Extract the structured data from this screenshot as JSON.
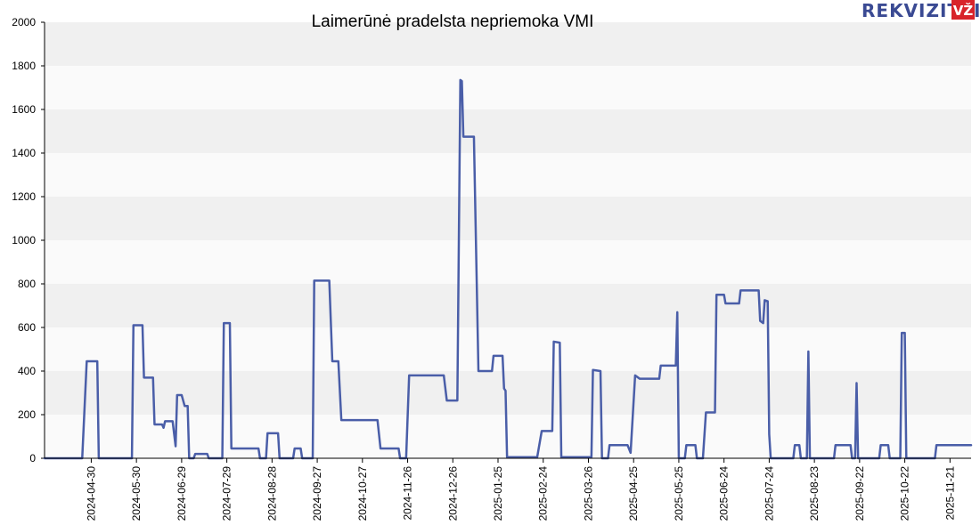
{
  "chart_data": {
    "type": "line",
    "title": "Laimerūnė pradelsta nepriemoka VMI",
    "xlabel": "",
    "ylabel": "",
    "ylim": [
      0,
      2000
    ],
    "y_ticks": [
      0,
      200,
      400,
      600,
      800,
      1000,
      1200,
      1400,
      1600,
      1800,
      2000
    ],
    "x_range": [
      "2024-03-30",
      "2025-12-05"
    ],
    "x_ticks": [
      "2024-04-30",
      "2024-05-30",
      "2024-06-29",
      "2024-07-29",
      "2024-08-28",
      "2024-09-27",
      "2024-10-27",
      "2024-11-26",
      "2024-12-26",
      "2025-01-25",
      "2025-02-24",
      "2025-03-26",
      "2025-04-25",
      "2025-05-25",
      "2025-06-24",
      "2025-07-24",
      "2025-08-23",
      "2025-09-22",
      "2025-10-22",
      "2025-11-21"
    ],
    "grid": "horizontal bands",
    "legend": "none",
    "line_color": "#4a5ea8",
    "series": [
      {
        "points": [
          [
            "2024-03-30",
            0
          ],
          [
            "2024-04-24",
            0
          ],
          [
            "2024-04-27",
            445
          ],
          [
            "2024-05-04",
            445
          ],
          [
            "2024-05-05",
            0
          ],
          [
            "2024-05-27",
            0
          ],
          [
            "2024-05-28",
            610
          ],
          [
            "2024-06-03",
            610
          ],
          [
            "2024-06-04",
            370
          ],
          [
            "2024-06-10",
            370
          ],
          [
            "2024-06-11",
            155
          ],
          [
            "2024-06-16",
            155
          ],
          [
            "2024-06-17",
            140
          ],
          [
            "2024-06-18",
            170
          ],
          [
            "2024-06-23",
            170
          ],
          [
            "2024-06-25",
            55
          ],
          [
            "2024-06-26",
            290
          ],
          [
            "2024-06-29",
            290
          ],
          [
            "2024-07-01",
            240
          ],
          [
            "2024-07-03",
            240
          ],
          [
            "2024-07-04",
            0
          ],
          [
            "2024-07-07",
            0
          ],
          [
            "2024-07-08",
            20
          ],
          [
            "2024-07-16",
            20
          ],
          [
            "2024-07-17",
            0
          ],
          [
            "2024-07-26",
            0
          ],
          [
            "2024-07-27",
            620
          ],
          [
            "2024-07-31",
            620
          ],
          [
            "2024-08-01",
            45
          ],
          [
            "2024-08-19",
            45
          ],
          [
            "2024-08-20",
            0
          ],
          [
            "2024-08-24",
            0
          ],
          [
            "2024-08-25",
            115
          ],
          [
            "2024-09-01",
            115
          ],
          [
            "2024-09-02",
            0
          ],
          [
            "2024-09-11",
            0
          ],
          [
            "2024-09-12",
            45
          ],
          [
            "2024-09-16",
            45
          ],
          [
            "2024-09-17",
            0
          ],
          [
            "2024-09-24",
            0
          ],
          [
            "2024-09-25",
            815
          ],
          [
            "2024-10-05",
            815
          ],
          [
            "2024-10-07",
            445
          ],
          [
            "2024-10-11",
            445
          ],
          [
            "2024-10-13",
            175
          ],
          [
            "2024-11-06",
            175
          ],
          [
            "2024-11-08",
            45
          ],
          [
            "2024-11-20",
            45
          ],
          [
            "2024-11-21",
            0
          ],
          [
            "2024-11-25",
            0
          ],
          [
            "2024-11-27",
            380
          ],
          [
            "2024-12-20",
            380
          ],
          [
            "2024-12-22",
            265
          ],
          [
            "2024-12-29",
            265
          ],
          [
            "2024-12-31",
            1735
          ],
          [
            "2025-01-01",
            1730
          ],
          [
            "2025-01-02",
            1475
          ],
          [
            "2025-01-09",
            1475
          ],
          [
            "2025-01-12",
            400
          ],
          [
            "2025-01-21",
            400
          ],
          [
            "2025-01-22",
            470
          ],
          [
            "2025-01-28",
            470
          ],
          [
            "2025-01-29",
            320
          ],
          [
            "2025-01-30",
            310
          ],
          [
            "2025-01-31",
            5
          ],
          [
            "2025-02-20",
            5
          ],
          [
            "2025-02-23",
            125
          ],
          [
            "2025-03-02",
            125
          ],
          [
            "2025-03-03",
            535
          ],
          [
            "2025-03-07",
            530
          ],
          [
            "2025-03-08",
            5
          ],
          [
            "2025-03-28",
            5
          ],
          [
            "2025-03-29",
            405
          ],
          [
            "2025-04-03",
            400
          ],
          [
            "2025-04-04",
            0
          ],
          [
            "2025-04-08",
            0
          ],
          [
            "2025-04-09",
            60
          ],
          [
            "2025-04-21",
            60
          ],
          [
            "2025-04-23",
            25
          ],
          [
            "2025-04-26",
            380
          ],
          [
            "2025-04-29",
            365
          ],
          [
            "2025-05-12",
            365
          ],
          [
            "2025-05-13",
            425
          ],
          [
            "2025-05-23",
            425
          ],
          [
            "2025-05-24",
            670
          ],
          [
            "2025-05-25",
            0
          ],
          [
            "2025-05-29",
            0
          ],
          [
            "2025-05-30",
            60
          ],
          [
            "2025-06-05",
            60
          ],
          [
            "2025-06-06",
            0
          ],
          [
            "2025-06-10",
            0
          ],
          [
            "2025-06-12",
            210
          ],
          [
            "2025-06-18",
            210
          ],
          [
            "2025-06-19",
            750
          ],
          [
            "2025-06-24",
            750
          ],
          [
            "2025-06-25",
            710
          ],
          [
            "2025-07-04",
            710
          ],
          [
            "2025-07-05",
            770
          ],
          [
            "2025-07-17",
            770
          ],
          [
            "2025-07-18",
            630
          ],
          [
            "2025-07-20",
            620
          ],
          [
            "2025-07-21",
            725
          ],
          [
            "2025-07-23",
            720
          ],
          [
            "2025-07-24",
            110
          ],
          [
            "2025-07-25",
            0
          ],
          [
            "2025-08-09",
            0
          ],
          [
            "2025-08-10",
            60
          ],
          [
            "2025-08-13",
            60
          ],
          [
            "2025-08-14",
            0
          ],
          [
            "2025-08-18",
            0
          ],
          [
            "2025-08-19",
            490
          ],
          [
            "2025-08-20",
            0
          ],
          [
            "2025-09-05",
            0
          ],
          [
            "2025-09-06",
            60
          ],
          [
            "2025-09-16",
            60
          ],
          [
            "2025-09-17",
            0
          ],
          [
            "2025-09-19",
            0
          ],
          [
            "2025-09-20",
            345
          ],
          [
            "2025-09-21",
            0
          ],
          [
            "2025-10-05",
            0
          ],
          [
            "2025-10-06",
            60
          ],
          [
            "2025-10-11",
            60
          ],
          [
            "2025-10-12",
            0
          ],
          [
            "2025-10-19",
            0
          ],
          [
            "2025-10-20",
            575
          ],
          [
            "2025-10-22",
            575
          ],
          [
            "2025-10-23",
            0
          ],
          [
            "2025-11-11",
            0
          ],
          [
            "2025-11-12",
            60
          ],
          [
            "2025-12-05",
            60
          ]
        ]
      }
    ]
  },
  "logo": {
    "text": "REKVIZITAI",
    "badge": "VŽ",
    "text_color": "#3a4a93",
    "badge_color": "#d8232a"
  }
}
